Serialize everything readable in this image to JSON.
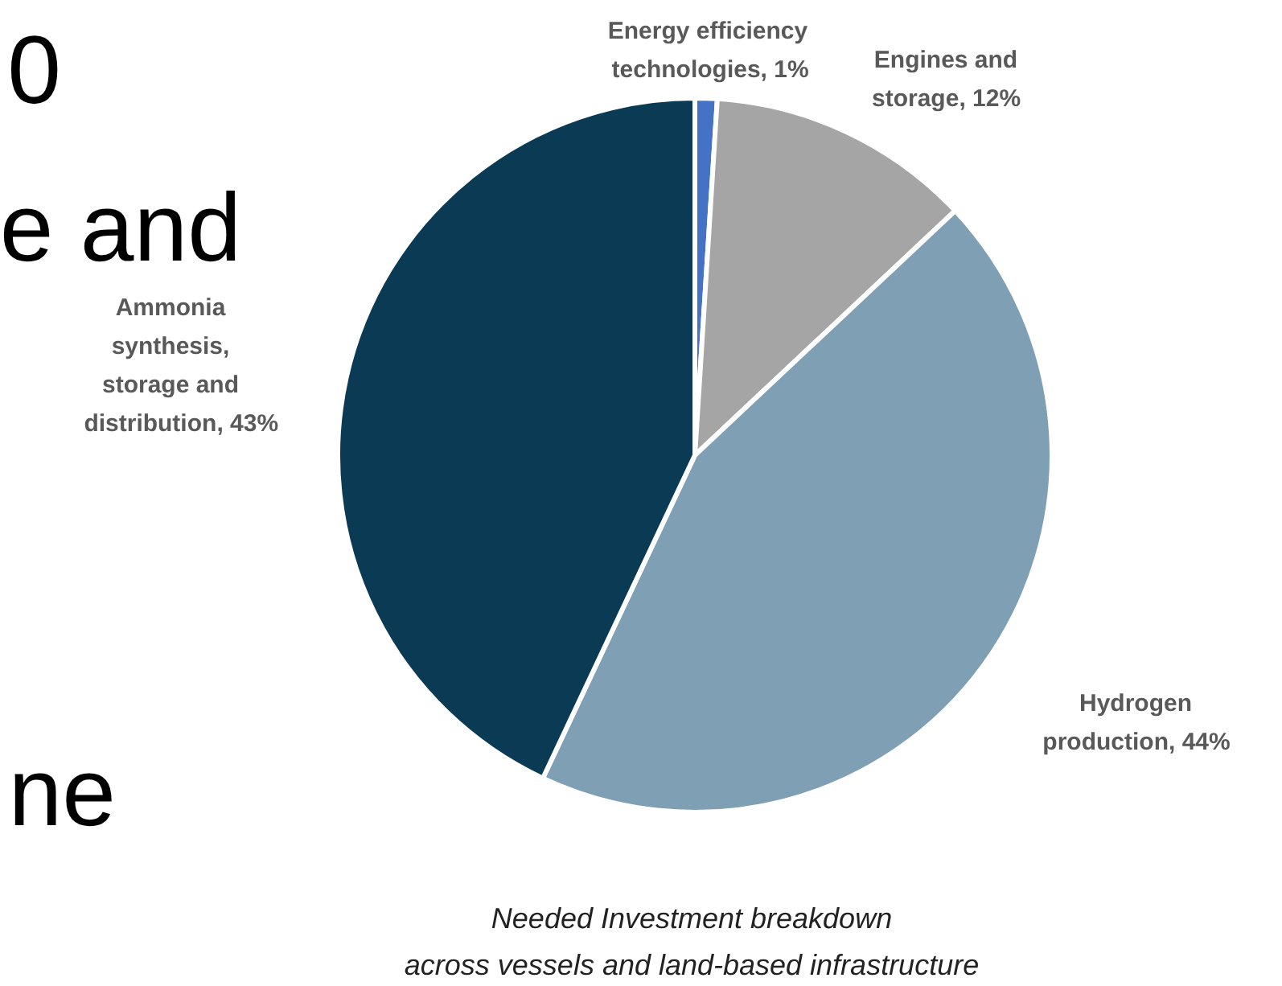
{
  "chart_data": {
    "type": "pie",
    "categories": [
      "Energy efficiency technologies",
      "Engines and storage",
      "Hydrogen production",
      "Ammonia synthesis, storage and distribution"
    ],
    "value_labels": [
      ", 1%",
      ", 12%",
      ", 44%",
      ", 43%"
    ],
    "values": [
      1,
      12,
      44,
      43
    ],
    "colors": [
      "#4472c4",
      "#a5a5a5",
      "#7f9fb4",
      "#0b3a54"
    ],
    "annotations": [
      "0",
      "e and",
      "ne",
      "Needed Investment breakdown",
      "across vessels and land-based infrastructure"
    ]
  }
}
